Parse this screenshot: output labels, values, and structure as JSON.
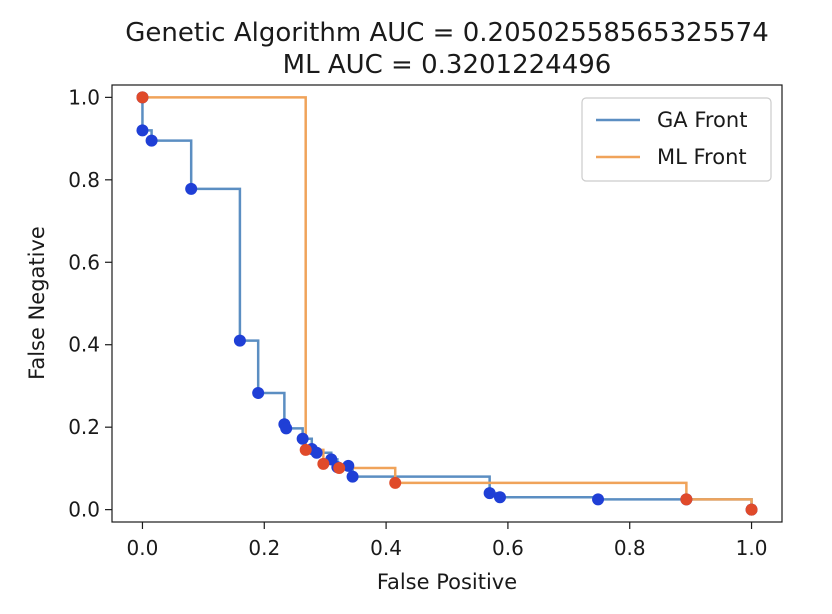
{
  "chart_data": {
    "type": "line",
    "title": "Genetic Algorithm AUC = 0.20502558565325574",
    "subtitle": "ML AUC = 0.3201224496",
    "xlabel": "False Positive",
    "ylabel": "False Negative",
    "xlim": [
      -0.05,
      1.05
    ],
    "ylim": [
      -0.03,
      1.03
    ],
    "x_ticks": [
      "0.0",
      "0.2",
      "0.4",
      "0.6",
      "0.8",
      "1.0"
    ],
    "y_ticks": [
      "0.0",
      "0.2",
      "0.4",
      "0.6",
      "0.8",
      "1.0"
    ],
    "x_tick_values": [
      0,
      0.2,
      0.4,
      0.6,
      0.8,
      1.0
    ],
    "y_tick_values": [
      0,
      0.2,
      0.4,
      0.6,
      0.8,
      1.0
    ],
    "grid": false,
    "legend_position": "top-right",
    "step_style": "post",
    "series": [
      {
        "name": "GA Front",
        "color": "#5b8ec2",
        "marker_color": "#1f3fd6",
        "points": [
          [
            0.0,
            1.0
          ],
          [
            0.0,
            0.92
          ],
          [
            0.015,
            0.895
          ],
          [
            0.08,
            0.778
          ],
          [
            0.16,
            0.41
          ],
          [
            0.19,
            0.283
          ],
          [
            0.233,
            0.207
          ],
          [
            0.236,
            0.197
          ],
          [
            0.263,
            0.172
          ],
          [
            0.278,
            0.147
          ],
          [
            0.286,
            0.138
          ],
          [
            0.31,
            0.122
          ],
          [
            0.32,
            0.103
          ],
          [
            0.338,
            0.106
          ],
          [
            0.345,
            0.08
          ],
          [
            0.57,
            0.04
          ],
          [
            0.587,
            0.03
          ],
          [
            0.748,
            0.025
          ],
          [
            0.893,
            0.025
          ],
          [
            1.0,
            0.0
          ]
        ]
      },
      {
        "name": "ML Front",
        "color": "#f0a35a",
        "marker_color": "#e04a2a",
        "points": [
          [
            0.0,
            1.0
          ],
          [
            0.268,
            0.145
          ],
          [
            0.297,
            0.111
          ],
          [
            0.323,
            0.101
          ],
          [
            0.415,
            0.065
          ],
          [
            0.893,
            0.025
          ],
          [
            1.0,
            0.0
          ]
        ]
      }
    ]
  }
}
